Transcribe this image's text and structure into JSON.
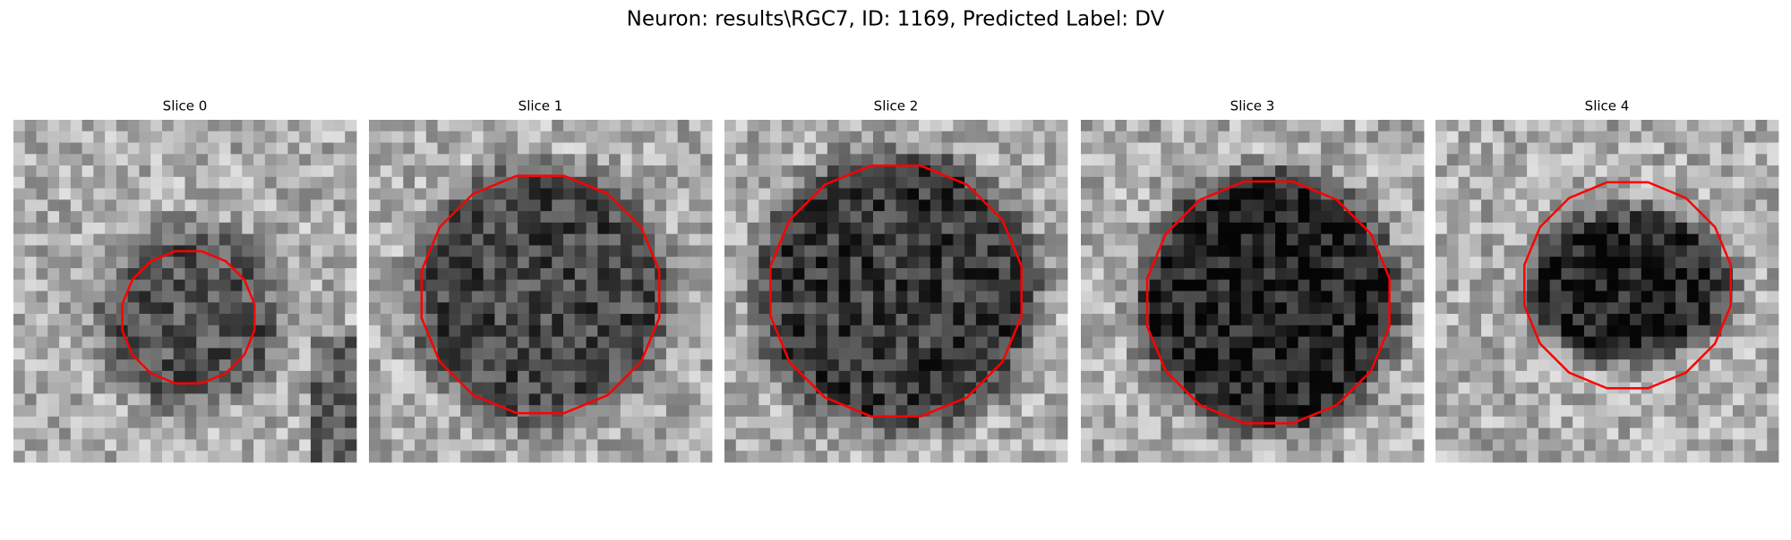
{
  "title": "Neuron: results\\RGC7, ID: 1169, Predicted Label: DV",
  "panels": [
    {
      "title": "Slice 0"
    },
    {
      "title": "Slice 1"
    },
    {
      "title": "Slice 2"
    },
    {
      "title": "Slice 3"
    },
    {
      "title": "Slice 4"
    }
  ]
}
